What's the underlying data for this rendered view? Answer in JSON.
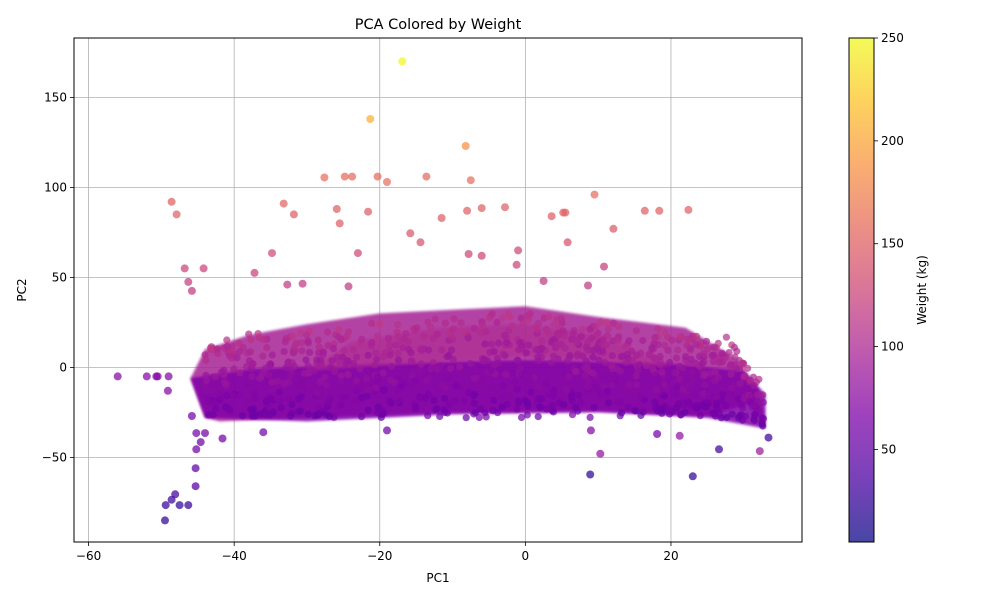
{
  "chart_data": {
    "type": "scatter",
    "title": "PCA Colored by Weight",
    "xlabel": "PC1",
    "ylabel": "PC2",
    "xlim": [
      -62,
      38
    ],
    "ylim": [
      -97,
      183
    ],
    "xticks": [
      -60,
      -40,
      -20,
      0,
      20
    ],
    "yticks": [
      -50,
      0,
      50,
      100,
      150
    ],
    "grid": true,
    "colormap": "plasma",
    "colorbar": {
      "label": "Weight (kg)",
      "min": 5,
      "max": 250,
      "ticks": [
        50,
        100,
        150,
        200,
        250
      ]
    },
    "points": [
      {
        "x": -16.9,
        "y": 170,
        "w": 248
      },
      {
        "x": -21.3,
        "y": 138,
        "w": 205
      },
      {
        "x": -8.2,
        "y": 123,
        "w": 185
      },
      {
        "x": -27.6,
        "y": 105.5,
        "w": 160
      },
      {
        "x": -24.8,
        "y": 106,
        "w": 158
      },
      {
        "x": -23.8,
        "y": 106,
        "w": 158
      },
      {
        "x": -20.3,
        "y": 106,
        "w": 158
      },
      {
        "x": -19.0,
        "y": 103,
        "w": 160
      },
      {
        "x": -13.6,
        "y": 106,
        "w": 158
      },
      {
        "x": -7.5,
        "y": 104,
        "w": 160
      },
      {
        "x": 9.5,
        "y": 96,
        "w": 160
      },
      {
        "x": -48.6,
        "y": 92,
        "w": 150
      },
      {
        "x": -33.2,
        "y": 91,
        "w": 152
      },
      {
        "x": -47.9,
        "y": 85,
        "w": 150
      },
      {
        "x": -31.8,
        "y": 85,
        "w": 148
      },
      {
        "x": -25.9,
        "y": 88,
        "w": 150
      },
      {
        "x": -21.6,
        "y": 86.5,
        "w": 148
      },
      {
        "x": -8.0,
        "y": 87,
        "w": 150
      },
      {
        "x": -6.0,
        "y": 88.5,
        "w": 150
      },
      {
        "x": -2.8,
        "y": 89,
        "w": 150
      },
      {
        "x": -11.5,
        "y": 83,
        "w": 148
      },
      {
        "x": -25.5,
        "y": 80,
        "w": 148
      },
      {
        "x": 3.6,
        "y": 84,
        "w": 148
      },
      {
        "x": 5.2,
        "y": 86,
        "w": 150
      },
      {
        "x": 5.5,
        "y": 86,
        "w": 150
      },
      {
        "x": 16.4,
        "y": 87,
        "w": 150
      },
      {
        "x": 18.4,
        "y": 87,
        "w": 150
      },
      {
        "x": 22.4,
        "y": 87.5,
        "w": 150
      },
      {
        "x": 12.1,
        "y": 77,
        "w": 145
      },
      {
        "x": -15.8,
        "y": 74.5,
        "w": 142
      },
      {
        "x": -14.4,
        "y": 69.5,
        "w": 140
      },
      {
        "x": 5.8,
        "y": 69.5,
        "w": 140
      },
      {
        "x": -1.0,
        "y": 65,
        "w": 130
      },
      {
        "x": -34.8,
        "y": 63.5,
        "w": 130
      },
      {
        "x": -23.0,
        "y": 63.5,
        "w": 130
      },
      {
        "x": -7.8,
        "y": 63,
        "w": 128
      },
      {
        "x": -6.0,
        "y": 62,
        "w": 128
      },
      {
        "x": -1.2,
        "y": 57,
        "w": 125
      },
      {
        "x": 10.8,
        "y": 56,
        "w": 120
      },
      {
        "x": -46.8,
        "y": 55,
        "w": 125
      },
      {
        "x": -44.2,
        "y": 55,
        "w": 125
      },
      {
        "x": -37.2,
        "y": 52.5,
        "w": 122
      },
      {
        "x": -46.3,
        "y": 47.5,
        "w": 120
      },
      {
        "x": -45.8,
        "y": 42.5,
        "w": 118
      },
      {
        "x": -32.7,
        "y": 46,
        "w": 118
      },
      {
        "x": -30.6,
        "y": 46.5,
        "w": 118
      },
      {
        "x": -24.3,
        "y": 45,
        "w": 118
      },
      {
        "x": 2.5,
        "y": 48,
        "w": 118
      },
      {
        "x": 8.6,
        "y": 45.5,
        "w": 118
      },
      {
        "x": -56.0,
        "y": -5,
        "w": 70
      },
      {
        "x": -52.0,
        "y": -5,
        "w": 70
      },
      {
        "x": -50.7,
        "y": -5,
        "w": 70
      },
      {
        "x": -50.5,
        "y": -5,
        "w": 70
      },
      {
        "x": -49.0,
        "y": -5,
        "w": 70
      },
      {
        "x": -49.1,
        "y": -13,
        "w": 70
      },
      {
        "x": -45.8,
        "y": -27,
        "w": 60
      },
      {
        "x": -45.2,
        "y": -36.5,
        "w": 60
      },
      {
        "x": -45.2,
        "y": -45.5,
        "w": 55
      },
      {
        "x": -44.6,
        "y": -41.5,
        "w": 55
      },
      {
        "x": -44.0,
        "y": -36.5,
        "w": 58
      },
      {
        "x": -41.6,
        "y": -39.5,
        "w": 58
      },
      {
        "x": -45.3,
        "y": -56,
        "w": 45
      },
      {
        "x": -45.3,
        "y": -66,
        "w": 40
      },
      {
        "x": -48.1,
        "y": -70.5,
        "w": 30
      },
      {
        "x": -48.6,
        "y": -73.5,
        "w": 28
      },
      {
        "x": -49.4,
        "y": -76.5,
        "w": 25
      },
      {
        "x": -47.5,
        "y": -76.5,
        "w": 25
      },
      {
        "x": -46.3,
        "y": -76.5,
        "w": 25
      },
      {
        "x": -49.5,
        "y": -85,
        "w": 20
      },
      {
        "x": 8.9,
        "y": -59.5,
        "w": 20
      },
      {
        "x": 23.0,
        "y": -60.5,
        "w": 22
      },
      {
        "x": 26.6,
        "y": -45.5,
        "w": 30
      },
      {
        "x": 10.3,
        "y": -48,
        "w": 80
      },
      {
        "x": 32.2,
        "y": -46.5,
        "w": 85
      },
      {
        "x": 33.4,
        "y": -39,
        "w": 30
      },
      {
        "x": 21.2,
        "y": -38,
        "w": 80
      },
      {
        "x": -36.0,
        "y": -36,
        "w": 60
      },
      {
        "x": -19.0,
        "y": -35,
        "w": 55
      },
      {
        "x": 9.0,
        "y": -35,
        "w": 70
      },
      {
        "x": 18.1,
        "y": -37,
        "w": 60
      }
    ]
  }
}
